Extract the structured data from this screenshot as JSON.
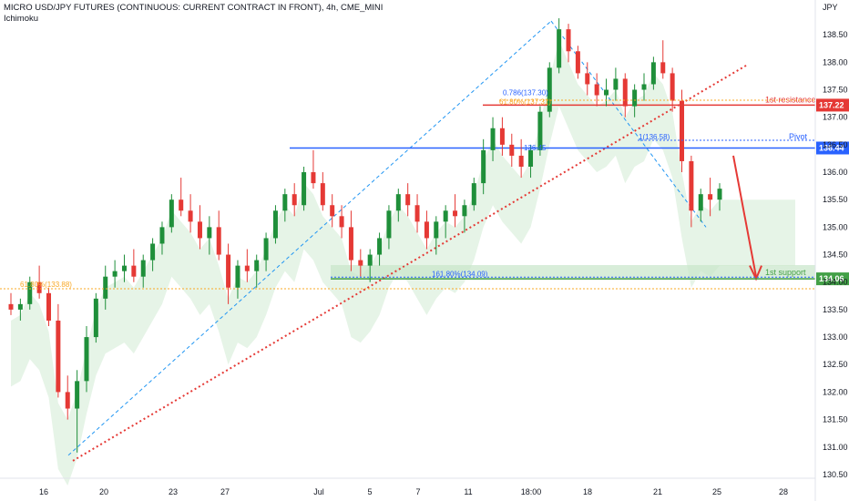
{
  "header": {
    "title": "MICRO USD/JPY FUTURES (CONTINUOUS: CURRENT CONTRACT IN FRONT), 4h, CME_MINI",
    "indicator": "Ichimoku"
  },
  "colors": {
    "up": "#26a69a",
    "candle_up": "#1f8f3a",
    "candle_down": "#e53935",
    "cloud_bull": "#c8e6c9",
    "cloud_bear": "#ffcdd2",
    "blue_line": "#2962ff",
    "red_line": "#e53935",
    "green_zone": "#c8e6c9",
    "fib_dash": "#2196f3",
    "orange_dots": "#f9a825"
  },
  "chart_data": {
    "type": "candlestick",
    "title": "MICRO USD/JPY FUTURES (CONTINUOUS: CURRENT CONTRACT IN FRONT), 4h, CME_MINI",
    "y_unit": "JPY",
    "ylim": [
      130.3,
      139.0
    ],
    "y_ticks": [
      "138.50",
      "138.00",
      "137.50",
      "137.00",
      "136.50",
      "136.00",
      "135.50",
      "135.00",
      "134.50",
      "134.00",
      "133.50",
      "133.00",
      "132.50",
      "132.00",
      "131.50",
      "131.00",
      "130.50"
    ],
    "x_ticks": [
      "16",
      "20",
      "23",
      "27",
      "Jul",
      "5",
      "7",
      "11",
      "18:00",
      "18",
      "21",
      "25",
      "28"
    ],
    "levels": [
      {
        "name": "1st resistance",
        "value": 137.22,
        "price_label": "137.22",
        "color": "#e53935"
      },
      {
        "name": "Pivot",
        "value": 136.44,
        "price_label": "136.44",
        "color": "#2962ff"
      },
      {
        "name": "1st support",
        "value": 134.06,
        "price_label": "134.06",
        "color": "#43a047"
      }
    ],
    "fib_labels": [
      {
        "text": "0.786(137.30)",
        "value": 137.3
      },
      {
        "text": "61.80%(137.31)",
        "value": 137.31
      },
      {
        "text": "1(136.58)",
        "value": 136.58
      },
      {
        "text": "161.80%(134.09)",
        "value": 134.09
      },
      {
        "text": "61.80%(133.88)",
        "value": 133.88
      },
      {
        "text": "136.45",
        "value": 136.45
      }
    ],
    "annotations": [
      "1st resistance",
      "Pivot",
      "1st support"
    ],
    "candles": [
      [
        133.6,
        133.8,
        133.4,
        133.5
      ],
      [
        133.5,
        133.7,
        133.3,
        133.6
      ],
      [
        133.6,
        134.1,
        133.5,
        134.0
      ],
      [
        134.0,
        134.3,
        133.7,
        133.8
      ],
      [
        133.8,
        133.9,
        133.2,
        133.3
      ],
      [
        133.3,
        133.6,
        131.9,
        132.0
      ],
      [
        132.0,
        132.3,
        131.5,
        131.7
      ],
      [
        131.7,
        132.4,
        130.9,
        132.2
      ],
      [
        132.2,
        133.2,
        132.0,
        133.0
      ],
      [
        133.0,
        133.8,
        132.9,
        133.7
      ],
      [
        133.7,
        134.3,
        133.5,
        134.1
      ],
      [
        134.1,
        134.4,
        133.9,
        134.2
      ],
      [
        134.2,
        134.5,
        134.0,
        134.3
      ],
      [
        134.3,
        134.6,
        134.0,
        134.1
      ],
      [
        134.1,
        134.5,
        133.9,
        134.4
      ],
      [
        134.4,
        134.8,
        134.2,
        134.7
      ],
      [
        134.7,
        135.1,
        134.5,
        135.0
      ],
      [
        135.0,
        135.6,
        134.9,
        135.5
      ],
      [
        135.5,
        135.9,
        135.2,
        135.3
      ],
      [
        135.3,
        135.6,
        134.9,
        135.1
      ],
      [
        135.1,
        135.4,
        134.6,
        134.8
      ],
      [
        134.8,
        135.2,
        134.5,
        135.0
      ],
      [
        135.0,
        135.3,
        134.4,
        134.5
      ],
      [
        134.5,
        134.7,
        133.6,
        133.9
      ],
      [
        133.9,
        134.4,
        133.7,
        134.3
      ],
      [
        134.3,
        134.6,
        134.0,
        134.2
      ],
      [
        134.2,
        134.5,
        133.9,
        134.4
      ],
      [
        134.4,
        134.9,
        134.2,
        134.8
      ],
      [
        134.8,
        135.4,
        134.7,
        135.3
      ],
      [
        135.3,
        135.7,
        135.1,
        135.6
      ],
      [
        135.6,
        135.8,
        135.2,
        135.4
      ],
      [
        135.4,
        136.1,
        135.3,
        136.0
      ],
      [
        136.0,
        136.4,
        135.7,
        135.8
      ],
      [
        135.8,
        136.0,
        135.3,
        135.4
      ],
      [
        135.4,
        135.6,
        135.0,
        135.2
      ],
      [
        135.2,
        135.4,
        134.8,
        135.0
      ],
      [
        135.0,
        135.3,
        134.2,
        134.4
      ],
      [
        134.4,
        134.6,
        134.1,
        134.3
      ],
      [
        134.3,
        134.6,
        134.0,
        134.5
      ],
      [
        134.5,
        134.9,
        134.3,
        134.8
      ],
      [
        134.8,
        135.4,
        134.6,
        135.3
      ],
      [
        135.3,
        135.7,
        135.1,
        135.6
      ],
      [
        135.6,
        135.8,
        135.2,
        135.4
      ],
      [
        135.4,
        135.6,
        134.9,
        135.1
      ],
      [
        135.1,
        135.3,
        134.6,
        134.8
      ],
      [
        134.8,
        135.2,
        134.5,
        135.1
      ],
      [
        135.1,
        135.4,
        134.8,
        135.3
      ],
      [
        135.3,
        135.6,
        135.0,
        135.2
      ],
      [
        135.2,
        135.5,
        134.9,
        135.4
      ],
      [
        135.4,
        135.9,
        135.3,
        135.8
      ],
      [
        135.8,
        136.6,
        135.6,
        136.4
      ],
      [
        136.4,
        137.0,
        136.2,
        136.8
      ],
      [
        136.8,
        137.0,
        136.3,
        136.5
      ],
      [
        136.5,
        136.7,
        136.1,
        136.3
      ],
      [
        136.3,
        136.6,
        135.9,
        136.1
      ],
      [
        136.1,
        136.5,
        135.9,
        136.4
      ],
      [
        136.4,
        137.2,
        136.3,
        137.1
      ],
      [
        137.1,
        138.0,
        137.0,
        137.9
      ],
      [
        137.9,
        138.8,
        137.8,
        138.6
      ],
      [
        138.6,
        138.7,
        138.0,
        138.2
      ],
      [
        138.2,
        138.3,
        137.7,
        137.8
      ],
      [
        137.8,
        138.0,
        137.4,
        137.6
      ],
      [
        137.6,
        137.8,
        137.2,
        137.4
      ],
      [
        137.4,
        137.7,
        137.2,
        137.5
      ],
      [
        137.5,
        137.9,
        137.3,
        137.7
      ],
      [
        137.7,
        137.8,
        137.0,
        137.2
      ],
      [
        137.2,
        137.6,
        137.0,
        137.5
      ],
      [
        137.5,
        137.8,
        137.3,
        137.6
      ],
      [
        137.6,
        138.1,
        137.5,
        138.0
      ],
      [
        138.0,
        138.4,
        137.7,
        137.8
      ],
      [
        137.8,
        137.9,
        137.1,
        137.3
      ],
      [
        137.3,
        137.5,
        136.0,
        136.2
      ],
      [
        136.2,
        136.3,
        135.0,
        135.3
      ],
      [
        135.3,
        135.7,
        135.1,
        135.6
      ],
      [
        135.6,
        135.9,
        135.2,
        135.5
      ],
      [
        135.5,
        135.8,
        135.3,
        135.7
      ]
    ]
  }
}
